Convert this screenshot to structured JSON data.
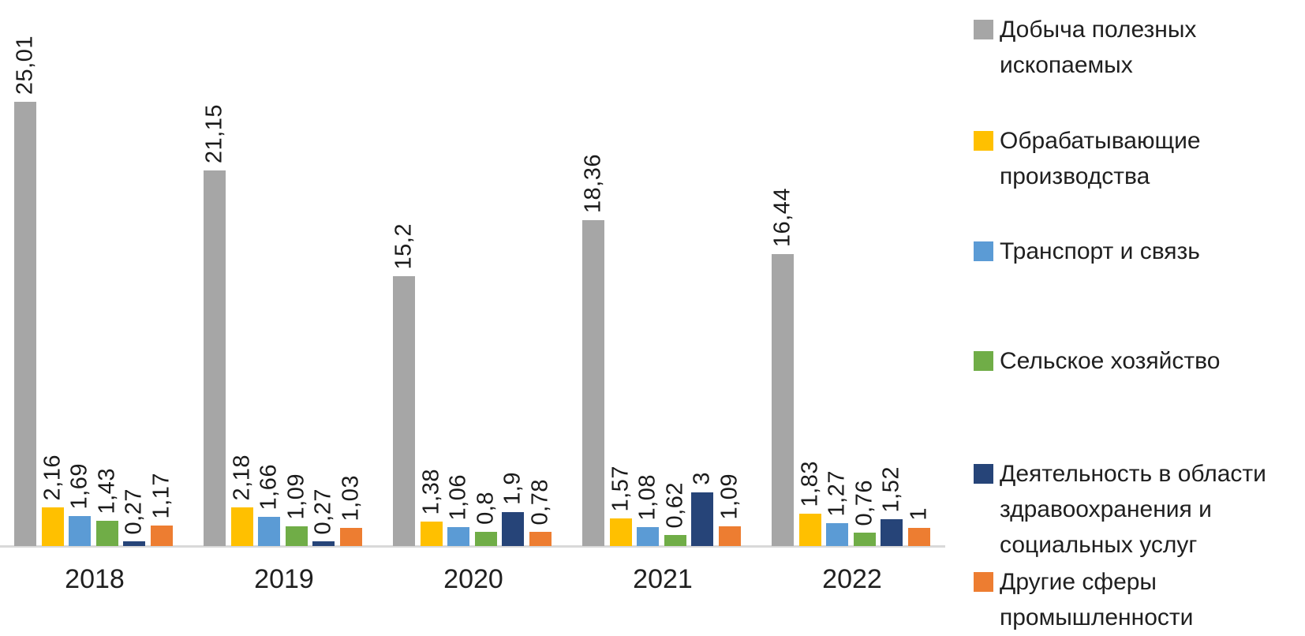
{
  "chart_data": {
    "type": "bar",
    "title": "",
    "xlabel": "",
    "ylabel": "",
    "grid": false,
    "y_axis_visible": false,
    "x_axis_line_color": "#d9d9d9",
    "legend_position": "right",
    "decimal_separator": ",",
    "ylim": [
      0,
      27
    ],
    "categories": [
      "2018",
      "2019",
      "2020",
      "2021",
      "2022"
    ],
    "series": [
      {
        "key": "mining",
        "name": "Добыча полезных ископаемых",
        "legend_lines": [
          "Добыча полезных",
          "ископаемых"
        ],
        "color": "#A6A6A6",
        "values": [
          25.01,
          21.15,
          15.2,
          18.36,
          16.44
        ],
        "display_labels": [
          "25,01",
          "21,15",
          "15,2",
          "18,36",
          "16,44"
        ]
      },
      {
        "key": "manufacturing",
        "name": "Обрабатывающие производства",
        "legend_lines": [
          "Обрабатывающие",
          "производства"
        ],
        "color": "#FFC000",
        "values": [
          2.16,
          2.18,
          1.38,
          1.57,
          1.83
        ],
        "display_labels": [
          "2,16",
          "2,18",
          "1,38",
          "1,57",
          "1,83"
        ]
      },
      {
        "key": "transport",
        "name": "Транспорт и связь",
        "legend_lines": [
          "Транспорт и связь"
        ],
        "color": "#5B9BD5",
        "values": [
          1.69,
          1.66,
          1.06,
          1.08,
          1.27
        ],
        "display_labels": [
          "1,69",
          "1,66",
          "1,06",
          "1,08",
          "1,27"
        ]
      },
      {
        "key": "agriculture",
        "name": "Сельское хозяйство",
        "legend_lines": [
          "Сельское хозяйство"
        ],
        "color": "#70AD47",
        "values": [
          1.43,
          1.09,
          0.8,
          0.62,
          0.76
        ],
        "display_labels": [
          "1,43",
          "1,09",
          "0,8",
          "0,62",
          "0,76"
        ]
      },
      {
        "key": "healthcare",
        "name": "Деятельность в области здравоохранения и социальных услуг",
        "legend_lines": [
          "Деятельность в области",
          "здравоохранения и",
          "социальных услуг"
        ],
        "color": "#264478",
        "values": [
          0.27,
          0.27,
          1.9,
          3,
          1.52
        ],
        "display_labels": [
          "0,27",
          "0,27",
          "1,9",
          "3",
          "1,52"
        ]
      },
      {
        "key": "other-industries",
        "name": "Другие сферы промышленности",
        "legend_lines": [
          "Другие сферы",
          "промышленности"
        ],
        "color": "#ED7D31",
        "values": [
          1.17,
          1.03,
          0.78,
          1.09,
          1
        ],
        "display_labels": [
          "1,17",
          "1,03",
          "0,78",
          "1,09",
          "1"
        ]
      }
    ]
  }
}
